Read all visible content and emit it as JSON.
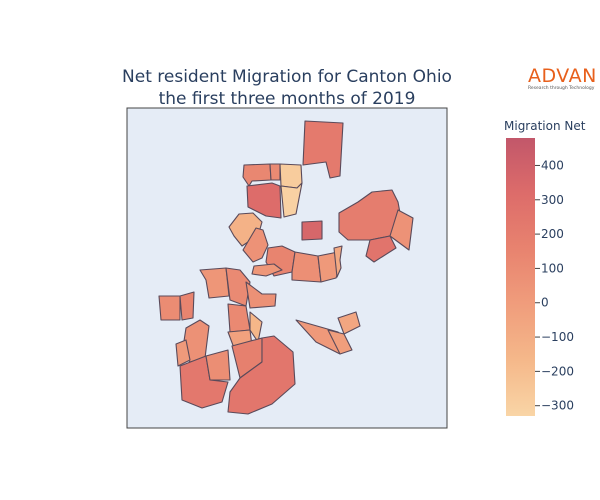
{
  "chart_data": {
    "type": "choropleth",
    "title_line1": "Net resident Migration for Canton Ohio",
    "title_line2": "the first three months of 2019",
    "colorbar": {
      "title": "Migration Net",
      "range": [
        -330,
        480
      ],
      "ticks": [
        "400",
        "300",
        "200",
        "100",
        "0",
        "−100",
        "−200",
        "−300"
      ],
      "tick_values": [
        400,
        300,
        200,
        100,
        0,
        -100,
        -200,
        -300
      ],
      "colors": [
        "#f9d5a6",
        "#f5b88a",
        "#f09d7c",
        "#e8836f",
        "#dd6c6a",
        "#c2576a"
      ]
    },
    "regions": [
      {
        "name": "tract-n-top",
        "value": 220
      },
      {
        "name": "tract-nw-a",
        "value": 130
      },
      {
        "name": "tract-nw-b",
        "value": 110
      },
      {
        "name": "tract-n-light",
        "value": -280
      },
      {
        "name": "tract-nw-dark",
        "value": 320
      },
      {
        "name": "tract-n-yellow",
        "value": -310
      },
      {
        "name": "tract-center-dark",
        "value": 360
      },
      {
        "name": "tract-w-small",
        "value": -130
      },
      {
        "name": "tract-w-mid",
        "value": 60
      },
      {
        "name": "tract-c-cluster-1",
        "value": 150
      },
      {
        "name": "tract-c-cluster-2",
        "value": 80
      },
      {
        "name": "tract-c-cluster-3",
        "value": 20
      },
      {
        "name": "tract-c-cluster-4",
        "value": -80
      },
      {
        "name": "tract-ne-big",
        "value": 200
      },
      {
        "name": "tract-ne-right",
        "value": 60
      },
      {
        "name": "tract-ne-low",
        "value": 260
      },
      {
        "name": "tract-mid-row-1",
        "value": 40
      },
      {
        "name": "tract-mid-row-2",
        "value": 110
      },
      {
        "name": "tract-mid-row-3",
        "value": 70
      },
      {
        "name": "tract-mid-row-4",
        "value": 120
      },
      {
        "name": "tract-mid-row-5",
        "value": 30
      },
      {
        "name": "tract-w-far-1",
        "value": 100
      },
      {
        "name": "tract-w-far-2",
        "value": 150
      },
      {
        "name": "tract-sw-1",
        "value": 70
      },
      {
        "name": "tract-sw-2",
        "value": 10
      },
      {
        "name": "tract-sw-3",
        "value": -30
      },
      {
        "name": "tract-sw-4",
        "value": -160
      },
      {
        "name": "tract-sw-big",
        "value": 230
      },
      {
        "name": "tract-s-1",
        "value": 90
      },
      {
        "name": "tract-s-2",
        "value": 180
      },
      {
        "name": "tract-s-big",
        "value": 250
      },
      {
        "name": "tract-se-1",
        "value": 20
      },
      {
        "name": "tract-se-2",
        "value": -60
      },
      {
        "name": "tract-se-3",
        "value": -10
      }
    ]
  },
  "logo": {
    "text": "ADVAN",
    "tagline": "Research through Technology",
    "color": "#e8601c"
  },
  "colors": {
    "plot_bg": "#e5ecf6",
    "frame": "#444444",
    "text": "#2a3f5f"
  }
}
